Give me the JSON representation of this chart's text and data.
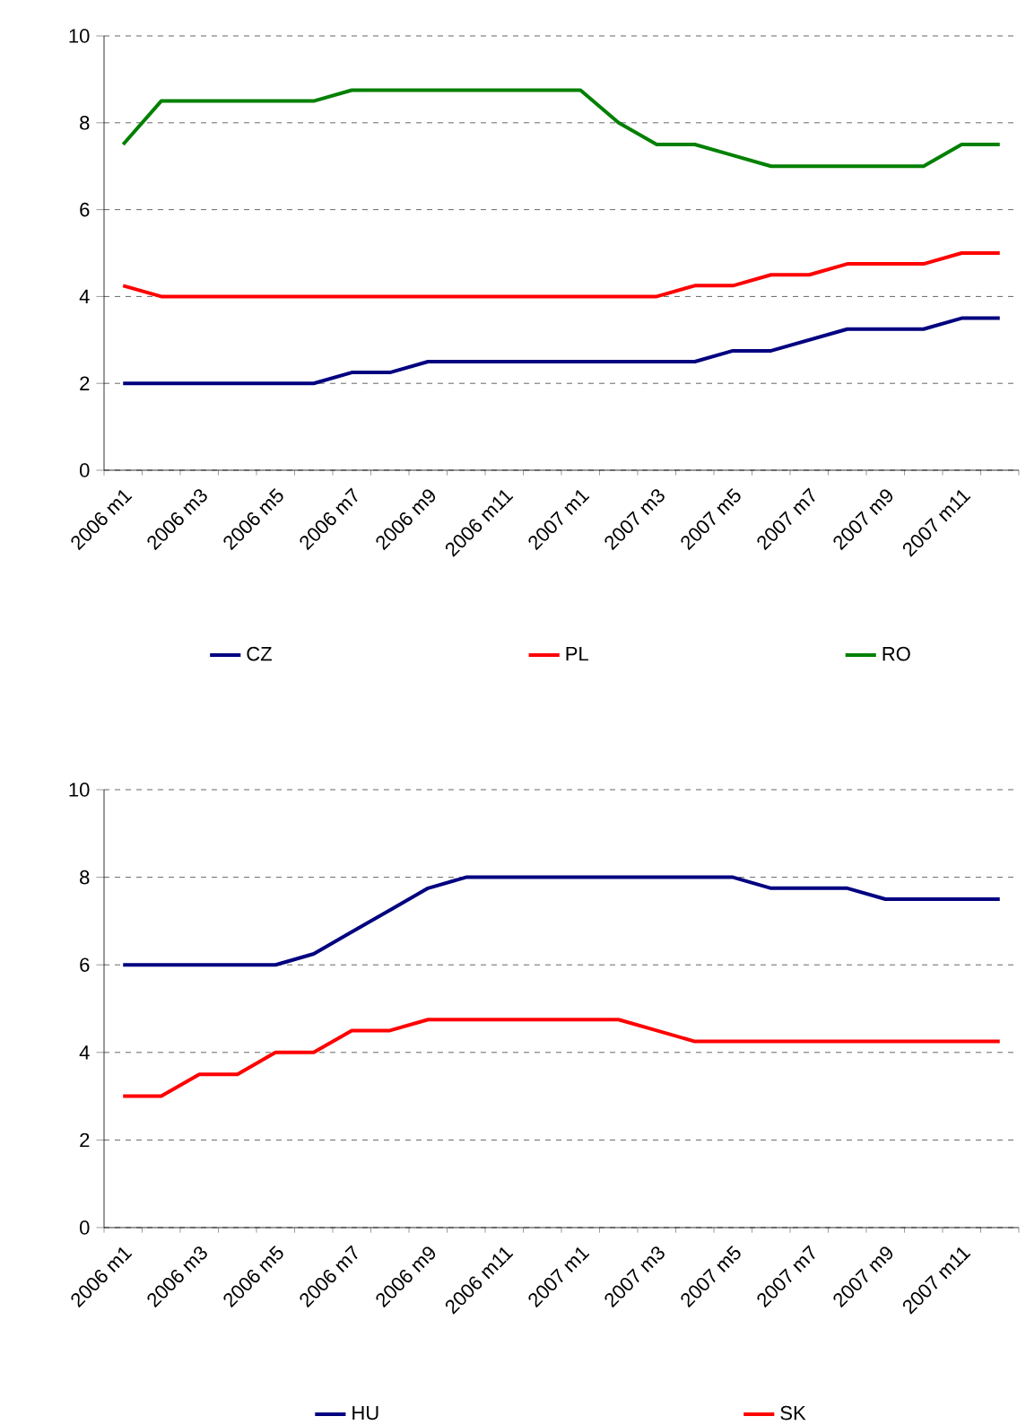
{
  "chart_data": [
    {
      "type": "line",
      "categories": [
        "2006 m1",
        null,
        "2006 m3",
        null,
        "2006 m5",
        null,
        "2006 m7",
        null,
        "2006 m9",
        null,
        "2006 m11",
        null,
        "2007 m1",
        null,
        "2007 m3",
        null,
        "2007 m5",
        null,
        "2007 m7",
        null,
        "2007 m9",
        null,
        "2007 m11",
        null
      ],
      "ylim": [
        0,
        10
      ],
      "yticks": [
        0,
        2,
        4,
        6,
        8,
        10
      ],
      "grid": "y",
      "legend": "bottom",
      "series": [
        {
          "name": "CZ",
          "color": "#000080",
          "values": [
            2.0,
            2.0,
            2.0,
            2.0,
            2.0,
            2.0,
            2.25,
            2.25,
            2.5,
            2.5,
            2.5,
            2.5,
            2.5,
            2.5,
            2.5,
            2.5,
            2.75,
            2.75,
            3.0,
            3.25,
            3.25,
            3.25,
            3.5,
            3.5
          ]
        },
        {
          "name": "PL",
          "color": "#ff0000",
          "values": [
            4.25,
            4.0,
            4.0,
            4.0,
            4.0,
            4.0,
            4.0,
            4.0,
            4.0,
            4.0,
            4.0,
            4.0,
            4.0,
            4.0,
            4.0,
            4.25,
            4.25,
            4.5,
            4.5,
            4.75,
            4.75,
            4.75,
            5.0,
            5.0
          ]
        },
        {
          "name": "RO",
          "color": "#008000",
          "values": [
            7.5,
            8.5,
            8.5,
            8.5,
            8.5,
            8.5,
            8.75,
            8.75,
            8.75,
            8.75,
            8.75,
            8.75,
            8.75,
            8.0,
            7.5,
            7.5,
            7.25,
            7.0,
            7.0,
            7.0,
            7.0,
            7.0,
            7.5,
            7.5
          ]
        }
      ]
    },
    {
      "type": "line",
      "categories": [
        "2006 m1",
        null,
        "2006 m3",
        null,
        "2006 m5",
        null,
        "2006 m7",
        null,
        "2006 m9",
        null,
        "2006 m11",
        null,
        "2007 m1",
        null,
        "2007 m3",
        null,
        "2007 m5",
        null,
        "2007 m7",
        null,
        "2007 m9",
        null,
        "2007 m11",
        null
      ],
      "ylim": [
        0,
        10
      ],
      "yticks": [
        0,
        2,
        4,
        6,
        8,
        10
      ],
      "grid": "y",
      "legend": "bottom",
      "series": [
        {
          "name": "HU",
          "color": "#000080",
          "values": [
            6.0,
            6.0,
            6.0,
            6.0,
            6.0,
            6.25,
            6.75,
            7.25,
            7.75,
            8.0,
            8.0,
            8.0,
            8.0,
            8.0,
            8.0,
            8.0,
            8.0,
            7.75,
            7.75,
            7.75,
            7.5,
            7.5,
            7.5,
            7.5
          ]
        },
        {
          "name": "SK",
          "color": "#ff0000",
          "values": [
            3.0,
            3.0,
            3.5,
            3.5,
            4.0,
            4.0,
            4.5,
            4.5,
            4.75,
            4.75,
            4.75,
            4.75,
            4.75,
            4.75,
            4.5,
            4.25,
            4.25,
            4.25,
            4.25,
            4.25,
            4.25,
            4.25,
            4.25,
            4.25
          ]
        }
      ]
    }
  ]
}
